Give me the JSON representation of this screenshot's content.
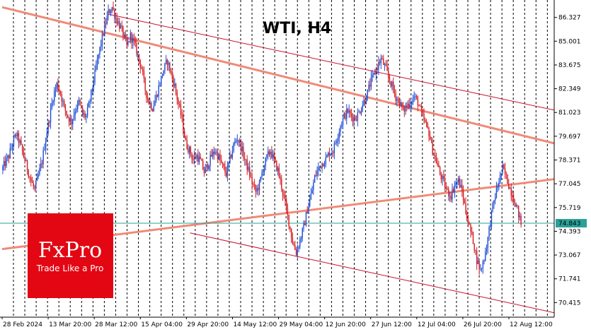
{
  "chart_data": {
    "type": "candlestick",
    "title": "WTI, H4",
    "symbol": "WTI",
    "timeframe": "H4",
    "ylim": [
      69.6,
      87.3
    ],
    "price_ticks": [
      "86.327",
      "85.001",
      "83.675",
      "82.349",
      "81.023",
      "79.697",
      "78.371",
      "77.045",
      "75.719",
      "74.393",
      "73.067",
      "71.741",
      "70.415"
    ],
    "current_price": "74.843",
    "x_tick_labels": [
      "28 Feb 2024",
      "13 Mar 20:00",
      "28 Mar 12:00",
      "15 Apr 04:00",
      "29 Apr 20:00",
      "14 May 12:00",
      "29 May 04:00",
      "12 Jun 20:00",
      "27 Jun 12:00",
      "12 Jul 04:00",
      "26 Jul 20:00",
      "12 Aug 12:00"
    ],
    "close_path": [
      77.8,
      78.2,
      78.6,
      79.3,
      79.8,
      79.3,
      78.6,
      77.9,
      77.2,
      76.7,
      77.5,
      78.3,
      79.6,
      80.7,
      81.9,
      82.6,
      82.1,
      81.3,
      80.8,
      80.5,
      81.2,
      81.6,
      80.9,
      80.8,
      81.7,
      82.8,
      83.9,
      84.9,
      85.8,
      86.6,
      86.9,
      86.3,
      85.9,
      85.4,
      84.7,
      85.3,
      84.9,
      84.2,
      83.5,
      82.3,
      81.6,
      81.3,
      81.9,
      82.7,
      83.4,
      83.9,
      83.2,
      82.5,
      81.5,
      80.6,
      79.3,
      78.9,
      78.4,
      78.6,
      78.3,
      77.7,
      78.1,
      78.6,
      78.9,
      78.5,
      78.0,
      77.6,
      78.4,
      79.2,
      79.6,
      79.1,
      78.4,
      77.8,
      77.1,
      76.6,
      77.0,
      77.9,
      78.5,
      78.9,
      78.3,
      77.8,
      76.9,
      75.9,
      74.9,
      73.8,
      73.2,
      73.9,
      74.6,
      75.6,
      76.4,
      77.4,
      77.9,
      78.2,
      78.4,
      78.8,
      78.9,
      79.6,
      80.3,
      80.8,
      81.1,
      80.8,
      80.7,
      81.0,
      81.5,
      81.9,
      82.6,
      83.1,
      83.6,
      84.0,
      83.6,
      83.0,
      82.5,
      81.9,
      81.6,
      81.1,
      81.4,
      81.6,
      81.9,
      81.6,
      80.9,
      80.4,
      79.9,
      78.9,
      78.3,
      77.6,
      77.1,
      76.6,
      76.4,
      77.0,
      77.2,
      76.6,
      75.5,
      74.6,
      73.9,
      72.8,
      72.2,
      72.9,
      74.0,
      75.4,
      76.4,
      77.2,
      77.9,
      77.4,
      76.8,
      76.2,
      75.6,
      74.8
    ],
    "trend_lines": [
      {
        "from": [
          0,
          86.9
        ],
        "to": [
          142,
          79.7
        ],
        "style": "thick"
      },
      {
        "from": [
          0,
          73.4
        ],
        "to": [
          142,
          77.1
        ],
        "style": "thick"
      },
      {
        "from": [
          29,
          86.5
        ],
        "to": [
          142,
          81.5
        ],
        "style": "thin"
      },
      {
        "from": [
          51,
          74.3
        ],
        "to": [
          142,
          70.2
        ],
        "style": "thin"
      }
    ],
    "bull_color": "#1f4fd6",
    "bear_color": "#d61b20",
    "trend_color": "#f08a78",
    "channel_color": "#c8102e",
    "current_line_color": "#2aa198",
    "grid": "vertical-dashed"
  },
  "logo": {
    "brand": "FxPro",
    "tagline": "Trade Like a Pro",
    "color": "#e30613"
  }
}
